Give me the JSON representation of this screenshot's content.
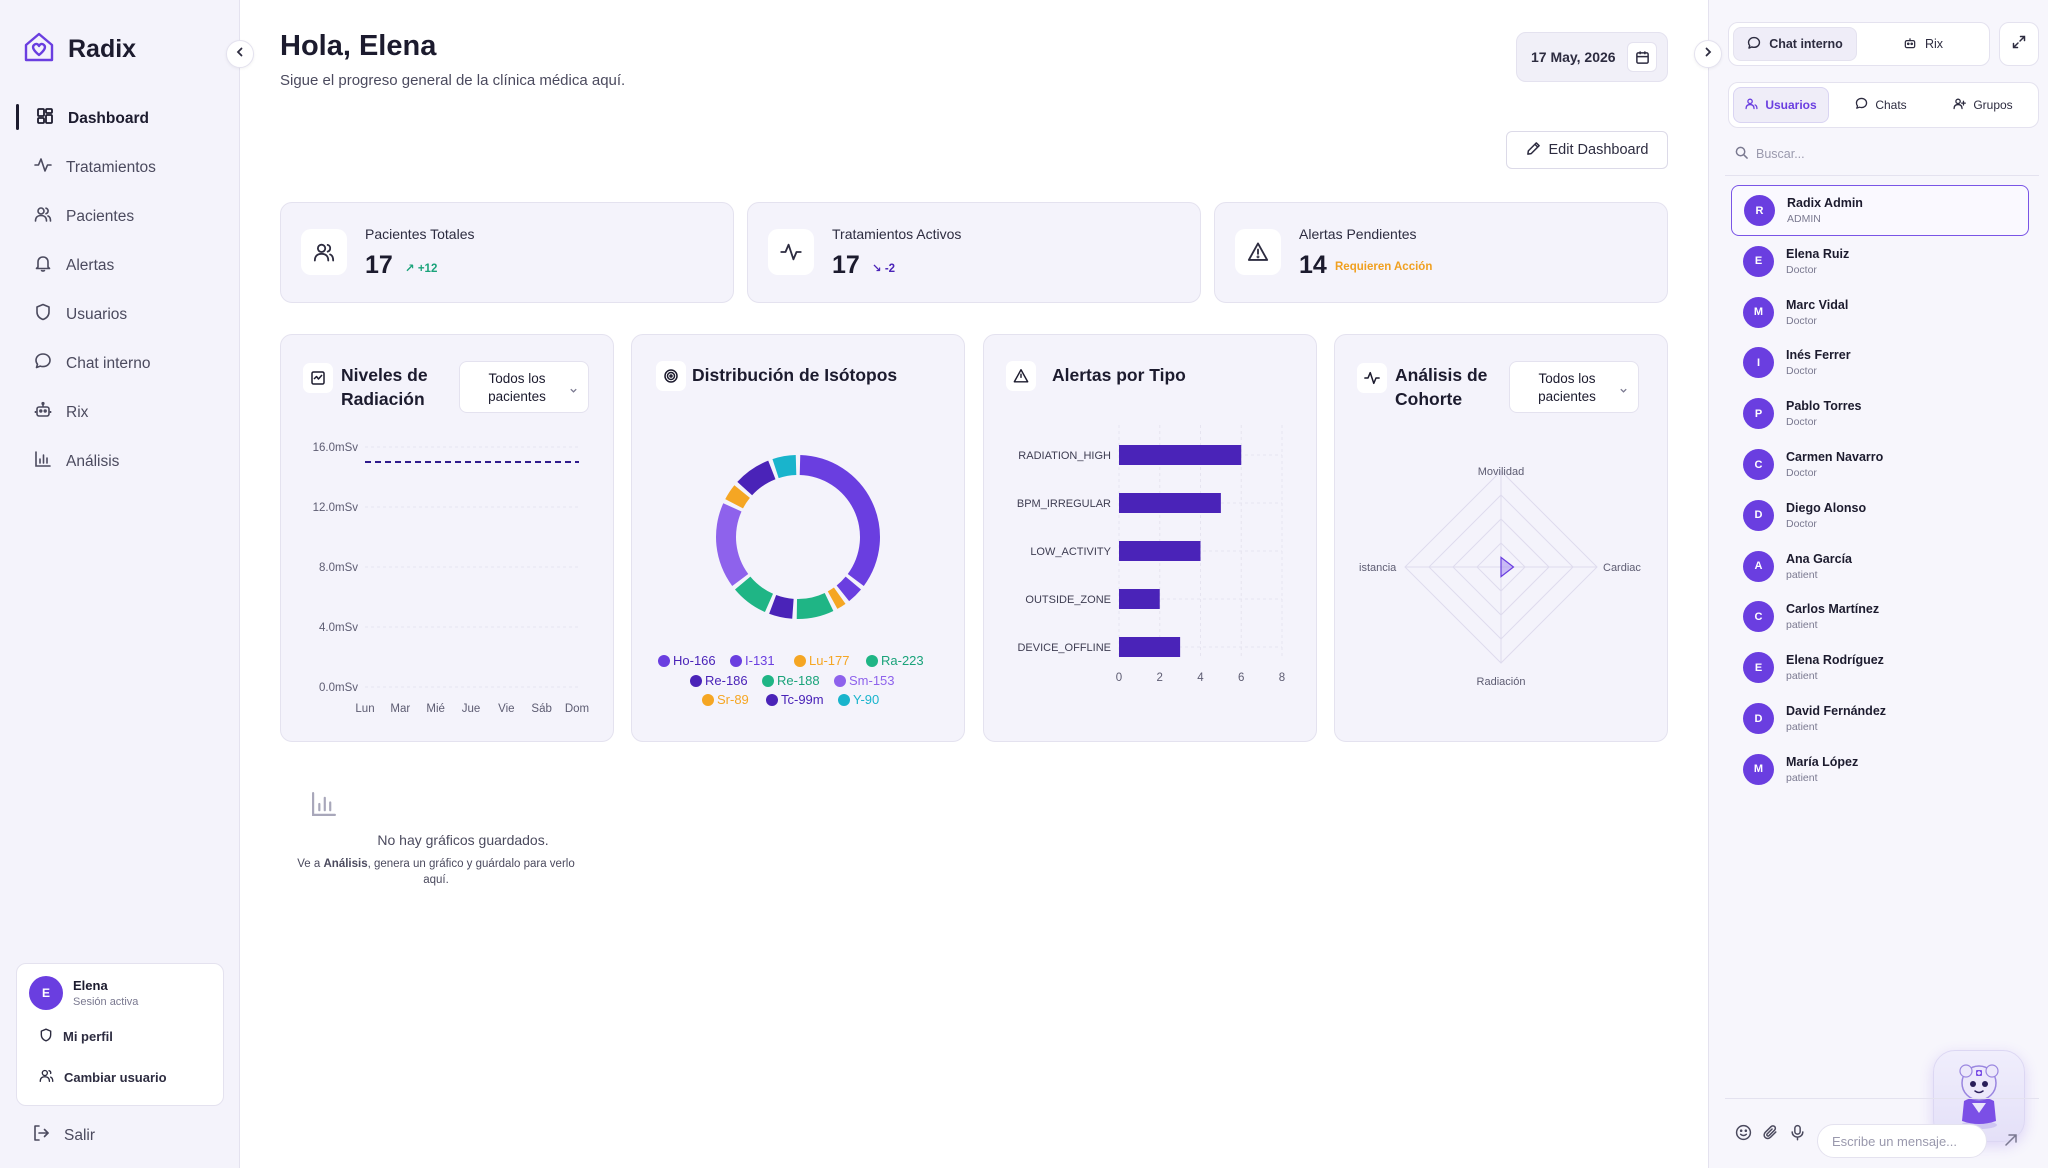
{
  "brand": {
    "name": "Radix"
  },
  "sidebar": {
    "items": [
      {
        "label": "Dashboard",
        "icon": "dashboard-icon",
        "active": true
      },
      {
        "label": "Tratamientos",
        "icon": "activity-icon"
      },
      {
        "label": "Pacientes",
        "icon": "users-icon"
      },
      {
        "label": "Alertas",
        "icon": "bell-icon"
      },
      {
        "label": "Usuarios",
        "icon": "shield-icon"
      },
      {
        "label": "Chat interno",
        "icon": "chat-icon"
      },
      {
        "label": "Rix",
        "icon": "bot-icon"
      },
      {
        "label": "Análisis",
        "icon": "bar-chart-icon"
      }
    ],
    "user": {
      "initial": "E",
      "name": "Elena",
      "status": "Sesión activa"
    },
    "profile_label": "Mi perfil",
    "switch_user_label": "Cambiar usuario",
    "logout_label": "Salir"
  },
  "header": {
    "greeting": "Hola, Elena",
    "subtitle": "Sigue el progreso general de la clínica médica aquí.",
    "date": "17 May, 2026",
    "edit_label": "Edit Dashboard"
  },
  "stats": [
    {
      "label": "Pacientes Totales",
      "value": "17",
      "delta": "+12",
      "delta_color": "#1aa37a",
      "icon": "users-icon"
    },
    {
      "label": "Tratamientos Activos",
      "value": "17",
      "delta": "-2",
      "delta_color": "#4a23b8",
      "icon": "activity-icon"
    },
    {
      "label": "Alertas Pendientes",
      "value": "14",
      "delta": "Requieren Acción",
      "delta_color": "#f0a020",
      "icon": "warning-icon"
    }
  ],
  "cards": {
    "radiation": {
      "title": "Niveles de Radiación",
      "select": "Todos los pacientes"
    },
    "isotopes": {
      "title": "Distribución de Isótopos"
    },
    "alerts": {
      "title": "Alertas por Tipo"
    },
    "cohort": {
      "title": "Análisis de Cohorte",
      "select": "Todos los pacientes"
    }
  },
  "chart_data": [
    {
      "type": "line",
      "categories": [
        "Lun",
        "Mar",
        "Mié",
        "Jue",
        "Vie",
        "Sáb",
        "Dom"
      ],
      "y_ticks": [
        "0.0mSv",
        "4.0mSv",
        "8.0mSv",
        "12.0mSv",
        "16.0mSv"
      ],
      "ylim": [
        0,
        16
      ],
      "threshold": 15,
      "series": []
    },
    {
      "type": "pie",
      "labels": [
        "Ho-166",
        "I-131",
        "Lu-177",
        "Ra-223",
        "Re-186",
        "Re-188",
        "Sm-153",
        "Sr-89",
        "Tc-99m",
        "Y-90"
      ],
      "values": [
        26,
        3,
        2,
        6,
        4,
        6,
        13,
        3,
        6,
        4
      ],
      "colors": [
        "#6a3ee0",
        "#6a3ee0",
        "#f5a623",
        "#1fb585",
        "#4a23b8",
        "#1fb585",
        "#8e62ec",
        "#f5a623",
        "#4a23b8",
        "#19b4cc"
      ],
      "label_colors": [
        "#4a23b8",
        "#6a3ee0",
        "#f5a623",
        "#1aa37a",
        "#4a23b8",
        "#1aa37a",
        "#8e62ec",
        "#f5a623",
        "#4a23b8",
        "#19b4cc"
      ]
    },
    {
      "type": "bar",
      "orientation": "horizontal",
      "categories": [
        "RADIATION_HIGH",
        "BPM_IRREGULAR",
        "LOW_ACTIVITY",
        "OUTSIDE_ZONE",
        "DEVICE_OFFLINE"
      ],
      "values": [
        6,
        5,
        4,
        2,
        3
      ],
      "x_ticks": [
        "0",
        "2",
        "4",
        "6",
        "8"
      ],
      "xlim": [
        0,
        8
      ],
      "color": "#4a23b8"
    },
    {
      "type": "radar",
      "axes": [
        "Movilidad",
        "Cardiac",
        "Radiación",
        "istancia"
      ],
      "values": [
        0.1,
        0.13,
        0.1,
        0
      ],
      "max": 1,
      "rings": 4
    }
  ],
  "empty_state": {
    "title": "No hay gráficos guardados.",
    "desc_prefix": "Ve a ",
    "desc_bold": "Análisis",
    "desc_suffix": ", genera un gráfico y guárdalo para verlo aquí."
  },
  "right_panel": {
    "tabs": [
      {
        "label": "Chat interno",
        "active": true
      },
      {
        "label": "Rix"
      }
    ],
    "subtabs": [
      {
        "label": "Usuarios",
        "active": true
      },
      {
        "label": "Chats"
      },
      {
        "label": "Grupos"
      }
    ],
    "search_placeholder": "Buscar...",
    "users": [
      {
        "initial": "R",
        "name": "Radix Admin",
        "role": "ADMIN",
        "selected": true
      },
      {
        "initial": "E",
        "name": "Elena Ruiz",
        "role": "Doctor"
      },
      {
        "initial": "M",
        "name": "Marc Vidal",
        "role": "Doctor"
      },
      {
        "initial": "I",
        "name": "Inés Ferrer",
        "role": "Doctor"
      },
      {
        "initial": "P",
        "name": "Pablo Torres",
        "role": "Doctor"
      },
      {
        "initial": "C",
        "name": "Carmen Navarro",
        "role": "Doctor"
      },
      {
        "initial": "D",
        "name": "Diego Alonso",
        "role": "Doctor"
      },
      {
        "initial": "A",
        "name": "Ana García",
        "role": "patient"
      },
      {
        "initial": "C",
        "name": "Carlos Martínez",
        "role": "patient"
      },
      {
        "initial": "E",
        "name": "Elena Rodríguez",
        "role": "patient"
      },
      {
        "initial": "D",
        "name": "David Fernández",
        "role": "patient"
      },
      {
        "initial": "M",
        "name": "María López",
        "role": "patient"
      }
    ],
    "message_placeholder": "Escribe un mensaje..."
  },
  "colors": {
    "accent": "#6a3ee0",
    "accent_dark": "#4a23b8"
  }
}
